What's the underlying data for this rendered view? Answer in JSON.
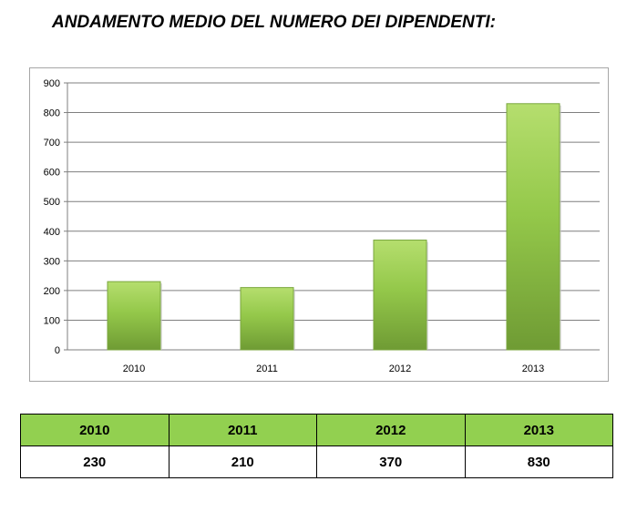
{
  "heading": "ANDAMENTO MEDIO DEL NUMERO DEI DIPENDENTI:",
  "chart_data": {
    "type": "bar",
    "categories": [
      "2010",
      "2011",
      "2012",
      "2013"
    ],
    "values": [
      230,
      210,
      370,
      830
    ],
    "ylim": [
      0,
      900
    ],
    "yticks": [
      0,
      100,
      200,
      300,
      400,
      500,
      600,
      700,
      800,
      900
    ],
    "grid": true,
    "legend": "none",
    "bar_colors": {
      "light": "#b5de6e",
      "mid": "#94c84a",
      "dark": "#6f9b34",
      "edge": "#7aa63d"
    },
    "gridline_color": "#7f7f7f"
  },
  "table": {
    "header_color": "#92d050",
    "years": [
      "2010",
      "2011",
      "2012",
      "2013"
    ],
    "values": [
      "230",
      "210",
      "370",
      "830"
    ]
  }
}
